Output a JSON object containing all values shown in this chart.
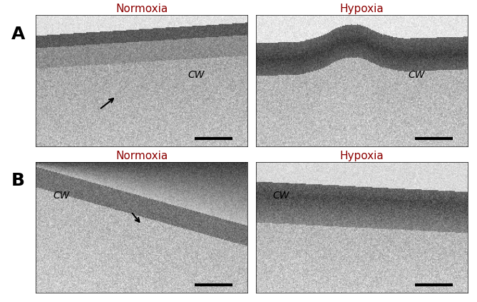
{
  "panel_A_label": "A",
  "panel_B_label": "B",
  "normoxia_label": "Normoxia",
  "hypoxia_label": "Hypoxia",
  "cw_label": "CW",
  "label_color_A": "#8B0000",
  "label_color_B": "#8B0000",
  "bg_color": "#ffffff",
  "fig_width": 6.69,
  "fig_height": 4.23,
  "dpi": 100,
  "title_fontsize": 11,
  "panel_label_fontsize": 18,
  "cw_fontsize": 10
}
